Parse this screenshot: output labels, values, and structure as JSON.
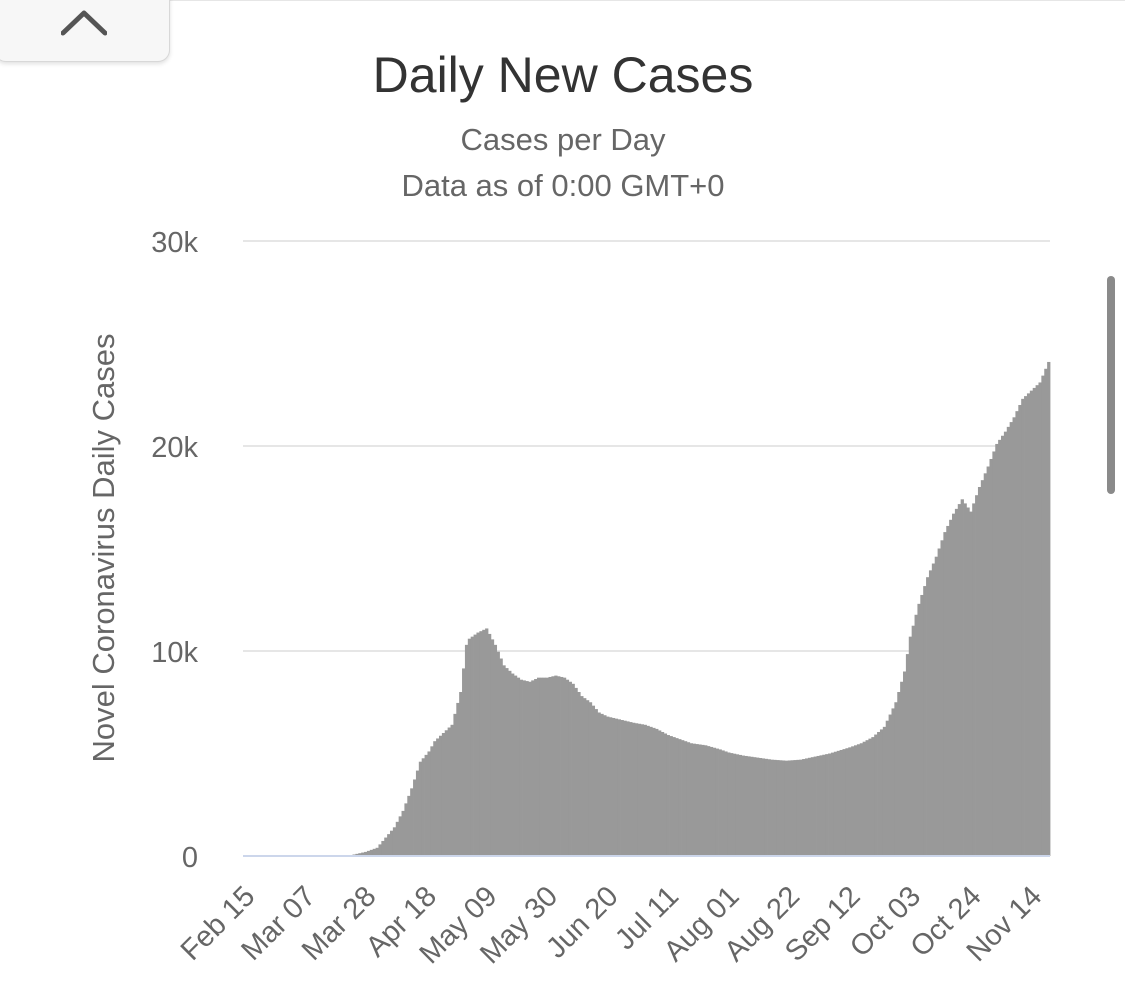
{
  "collapse_button": {
    "icon": "chevron-up-icon"
  },
  "chart_data": {
    "type": "bar",
    "title": "Daily New Cases",
    "subtitle_lines": [
      "Cases per Day",
      "Data as of 0:00 GMT+0"
    ],
    "ylabel": "Novel Coronavirus Daily Cases",
    "xlabel": "",
    "ylim": [
      0,
      30000
    ],
    "y_ticks": [
      0,
      10000,
      20000,
      30000
    ],
    "y_tick_labels": [
      "0",
      "10k",
      "20k",
      "30k"
    ],
    "x_start": "2020-02-15",
    "x_end": "2020-11-20",
    "x_tick_labels": [
      "Feb 15",
      "Mar 07",
      "Mar 28",
      "Apr 18",
      "May 09",
      "May 30",
      "Jun 20",
      "Jul 11",
      "Aug 01",
      "Aug 22",
      "Sep 12",
      "Oct 03",
      "Oct 24",
      "Nov 14"
    ],
    "x_tick_dates": [
      "2020-02-15",
      "2020-03-07",
      "2020-03-28",
      "2020-04-18",
      "2020-05-09",
      "2020-05-30",
      "2020-06-20",
      "2020-07-11",
      "2020-08-01",
      "2020-08-22",
      "2020-09-12",
      "2020-10-03",
      "2020-10-24",
      "2020-11-14"
    ],
    "grid": true,
    "legend": "none",
    "bar_color": "#999999",
    "series": [
      {
        "x": [
          "2020-02-15",
          "2020-02-22",
          "2020-03-01",
          "2020-03-08",
          "2020-03-15",
          "2020-03-22",
          "2020-03-28",
          "2020-04-01",
          "2020-04-04",
          "2020-04-07",
          "2020-04-10",
          "2020-04-13",
          "2020-04-16",
          "2020-04-19",
          "2020-04-21",
          "2020-04-24",
          "2020-04-27",
          "2020-04-30",
          "2020-05-02",
          "2020-05-03",
          "2020-05-06",
          "2020-05-09",
          "2020-05-12",
          "2020-05-15",
          "2020-05-18",
          "2020-05-21",
          "2020-05-24",
          "2020-05-27",
          "2020-05-30",
          "2020-06-02",
          "2020-06-05",
          "2020-06-08",
          "2020-06-11",
          "2020-06-14",
          "2020-06-17",
          "2020-06-20",
          "2020-06-23",
          "2020-06-26",
          "2020-06-29",
          "2020-07-03",
          "2020-07-07",
          "2020-07-11",
          "2020-07-15",
          "2020-07-19",
          "2020-07-24",
          "2020-07-29",
          "2020-08-01",
          "2020-08-06",
          "2020-08-11",
          "2020-08-16",
          "2020-08-21",
          "2020-08-26",
          "2020-08-31",
          "2020-09-05",
          "2020-09-12",
          "2020-09-16",
          "2020-09-20",
          "2020-09-24",
          "2020-09-28",
          "2020-10-01",
          "2020-10-03",
          "2020-10-06",
          "2020-10-09",
          "2020-10-12",
          "2020-10-15",
          "2020-10-18",
          "2020-10-21",
          "2020-10-24",
          "2020-10-27",
          "2020-10-30",
          "2020-11-02",
          "2020-11-05",
          "2020-11-08",
          "2020-11-11",
          "2020-11-14",
          "2020-11-17",
          "2020-11-20"
        ],
        "values": [
          0,
          0,
          0,
          0,
          0,
          10,
          200,
          400,
          900,
          1400,
          2200,
          3300,
          4600,
          5100,
          5600,
          6000,
          6400,
          8000,
          10300,
          10600,
          10900,
          11100,
          10300,
          9300,
          8900,
          8600,
          8500,
          8700,
          8700,
          8800,
          8700,
          8400,
          7800,
          7500,
          7000,
          6800,
          6700,
          6600,
          6500,
          6400,
          6200,
          5900,
          5700,
          5500,
          5400,
          5200,
          5050,
          4900,
          4800,
          4700,
          4650,
          4700,
          4850,
          5000,
          5300,
          5500,
          5800,
          6300,
          7500,
          9000,
          10700,
          12300,
          13600,
          14600,
          15800,
          16700,
          17400,
          16800,
          18000,
          19000,
          20100,
          20700,
          21400,
          22300,
          22700,
          23100,
          24100
        ]
      }
    ]
  }
}
